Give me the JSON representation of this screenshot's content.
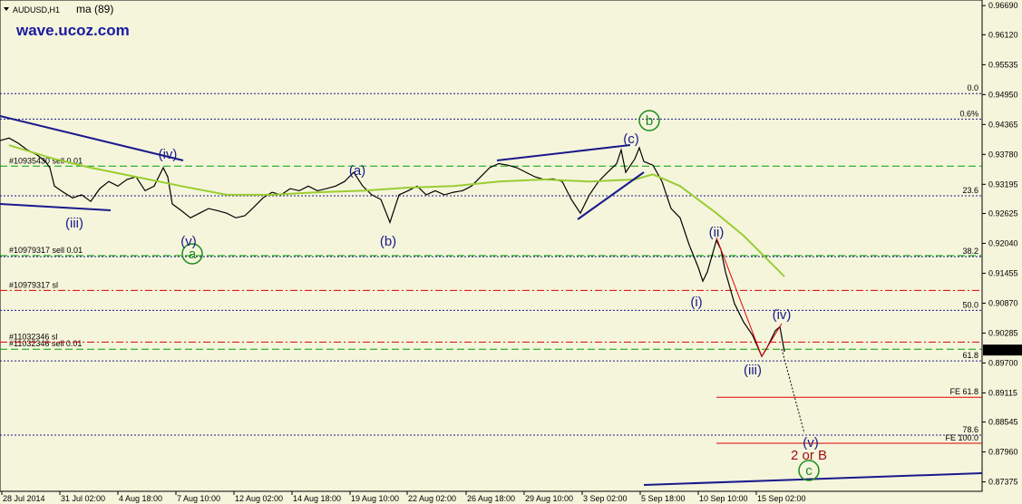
{
  "chart_data": {
    "type": "line",
    "watermark": "wave.ucoz.com",
    "xlim": [
      0,
      1083
    ],
    "ylim": [
      0.8719,
      0.968
    ],
    "xticks": [
      {
        "value": 2,
        "label": "28 Jul 2014"
      },
      {
        "value": 66,
        "label": "31 Jul 02:00"
      },
      {
        "value": 130,
        "label": "4 Aug 18:00"
      },
      {
        "value": 194,
        "label": "7 Aug 10:00"
      },
      {
        "value": 258,
        "label": "12 Aug 02:00"
      },
      {
        "value": 322,
        "label": "14 Aug 18:00"
      },
      {
        "value": 386,
        "label": "19 Aug 10:00"
      },
      {
        "value": 449,
        "label": "22 Aug 02:00"
      },
      {
        "value": 514,
        "label": "26 Aug 18:00"
      },
      {
        "value": 578,
        "label": "29 Aug 10:00"
      },
      {
        "value": 642,
        "label": "3 Sep 02:00"
      },
      {
        "value": 706,
        "label": "5 Sep 18:00"
      },
      {
        "value": 770,
        "label": "10 Sep 10:00"
      },
      {
        "value": 834,
        "label": "15 Sep 02:00"
      }
    ],
    "yticks": [
      {
        "value": 0.9669,
        "label": "0.96690"
      },
      {
        "value": 0.9612,
        "label": "0.96120"
      },
      0.95535,
      {
        "value": 0.9495,
        "label": "0.94950"
      },
      0.94365,
      {
        "value": 0.9378,
        "label": "0.93780"
      },
      0.93195,
      0.92625,
      {
        "value": 0.9204,
        "label": "0.92040"
      },
      0.91455,
      {
        "value": 0.9087,
        "label": "0.90870"
      },
      0.90285,
      {
        "value": 0.897,
        "label": "0.89700"
      },
      0.89115,
      0.88545,
      {
        "value": 0.8796,
        "label": "0.87960"
      },
      0.87375
    ],
    "series": [
      {
        "name": "AUDUSD,H1",
        "color": "#000000",
        "x": [
          0,
          10,
          20,
          30,
          40,
          50,
          55,
          60,
          70,
          80,
          90,
          100,
          110,
          120,
          130,
          140,
          150,
          160,
          170,
          180,
          185,
          190,
          200,
          210,
          220,
          230,
          240,
          250,
          260,
          270,
          280,
          290,
          300,
          310,
          320,
          330,
          340,
          350,
          360,
          370,
          380,
          390,
          400,
          410,
          420,
          430,
          440,
          450,
          460,
          470,
          480,
          490,
          500,
          510,
          520,
          530,
          540,
          550,
          560,
          570,
          580,
          590,
          600,
          610,
          620,
          630,
          640,
          650,
          660,
          670,
          680,
          685,
          690,
          700,
          705,
          710,
          720,
          730,
          740,
          750,
          760,
          770,
          775,
          780,
          790,
          795,
          800,
          810,
          820,
          830,
          840,
          845,
          850,
          855,
          860,
          865
        ],
        "values": [
          0.9405,
          0.941,
          0.94,
          0.9387,
          0.9378,
          0.9364,
          0.9352,
          0.9316,
          0.9304,
          0.9293,
          0.9299,
          0.9286,
          0.9311,
          0.9325,
          0.9316,
          0.9329,
          0.9334,
          0.9307,
          0.9316,
          0.9352,
          0.9334,
          0.9281,
          0.9268,
          0.9254,
          0.9263,
          0.9272,
          0.9268,
          0.9263,
          0.9254,
          0.9258,
          0.9275,
          0.9293,
          0.9304,
          0.9299,
          0.9311,
          0.9307,
          0.9316,
          0.9307,
          0.9311,
          0.9316,
          0.9325,
          0.9343,
          0.9316,
          0.9299,
          0.929,
          0.9245,
          0.9299,
          0.9307,
          0.9316,
          0.9299,
          0.9307,
          0.9299,
          0.9304,
          0.9307,
          0.9316,
          0.9334,
          0.9352,
          0.936,
          0.9357,
          0.9352,
          0.9343,
          0.9334,
          0.9329,
          0.933,
          0.9325,
          0.929,
          0.9263,
          0.9299,
          0.9325,
          0.9343,
          0.936,
          0.9387,
          0.9343,
          0.9369,
          0.9391,
          0.9364,
          0.9357,
          0.9325,
          0.9272,
          0.9254,
          0.9201,
          0.9157,
          0.913,
          0.9148,
          0.921,
          0.9192,
          0.9148,
          0.9086,
          0.905,
          0.9024,
          0.8983,
          0.8997,
          0.9015,
          0.9033,
          0.9041,
          0.8992
        ]
      },
      {
        "name": "ma (89)",
        "color": "#9acd32",
        "x": [
          10,
          60,
          100,
          150,
          200,
          250,
          300,
          350,
          400,
          450,
          500,
          550,
          600,
          650,
          700,
          720,
          750,
          790,
          820,
          850,
          865
        ],
        "values": [
          0.9396,
          0.9369,
          0.9352,
          0.9334,
          0.9316,
          0.9299,
          0.9299,
          0.9304,
          0.9307,
          0.9313,
          0.9316,
          0.9325,
          0.9329,
          0.9325,
          0.9329,
          0.9339,
          0.9316,
          0.9263,
          0.9219,
          0.9166,
          0.9139
        ]
      }
    ],
    "last_price": 0.89953,
    "fib_color": "#1a1a8c",
    "fib_levels": [
      {
        "value": 0.9497,
        "label": "0.0"
      },
      {
        "value": 0.9447,
        "label": "0.6%"
      },
      {
        "value": 0.9297,
        "label": "23.6"
      },
      {
        "value": 0.9178,
        "label": "38.2"
      },
      {
        "value": 0.9073,
        "label": "50.0"
      },
      {
        "value": 0.8974,
        "label": "61.8"
      },
      {
        "value": 0.8829,
        "label": "78.6"
      }
    ],
    "order_color": "#00a000",
    "order_lines": [
      {
        "value": 0.9355,
        "label": "#10935430 sell 0.01"
      },
      {
        "value": 0.918,
        "label": "#10979317 sell 0.01"
      },
      {
        "value": 0.8997,
        "label": "#11032346 sell 0.01"
      }
    ],
    "sl_color": "#e00000",
    "sl_lines": [
      {
        "value": 0.9112,
        "label": "#10979317 sl"
      },
      {
        "value": 0.9011,
        "label": "#11032346 sl"
      }
    ],
    "fe_color": "#e00000",
    "fe_levels": [
      {
        "value": 0.8903,
        "label": "FE 61.8"
      },
      {
        "value": 0.8813,
        "label": "FE 100.0"
      }
    ],
    "annotations": [
      "(iv)",
      "(iii)",
      "(v)",
      "a",
      "(a)",
      "(b)",
      "(c)",
      "b",
      "(ii)",
      "(i)",
      "(iii)",
      "(iv)",
      "(v)",
      "2 or B",
      "c"
    ]
  }
}
